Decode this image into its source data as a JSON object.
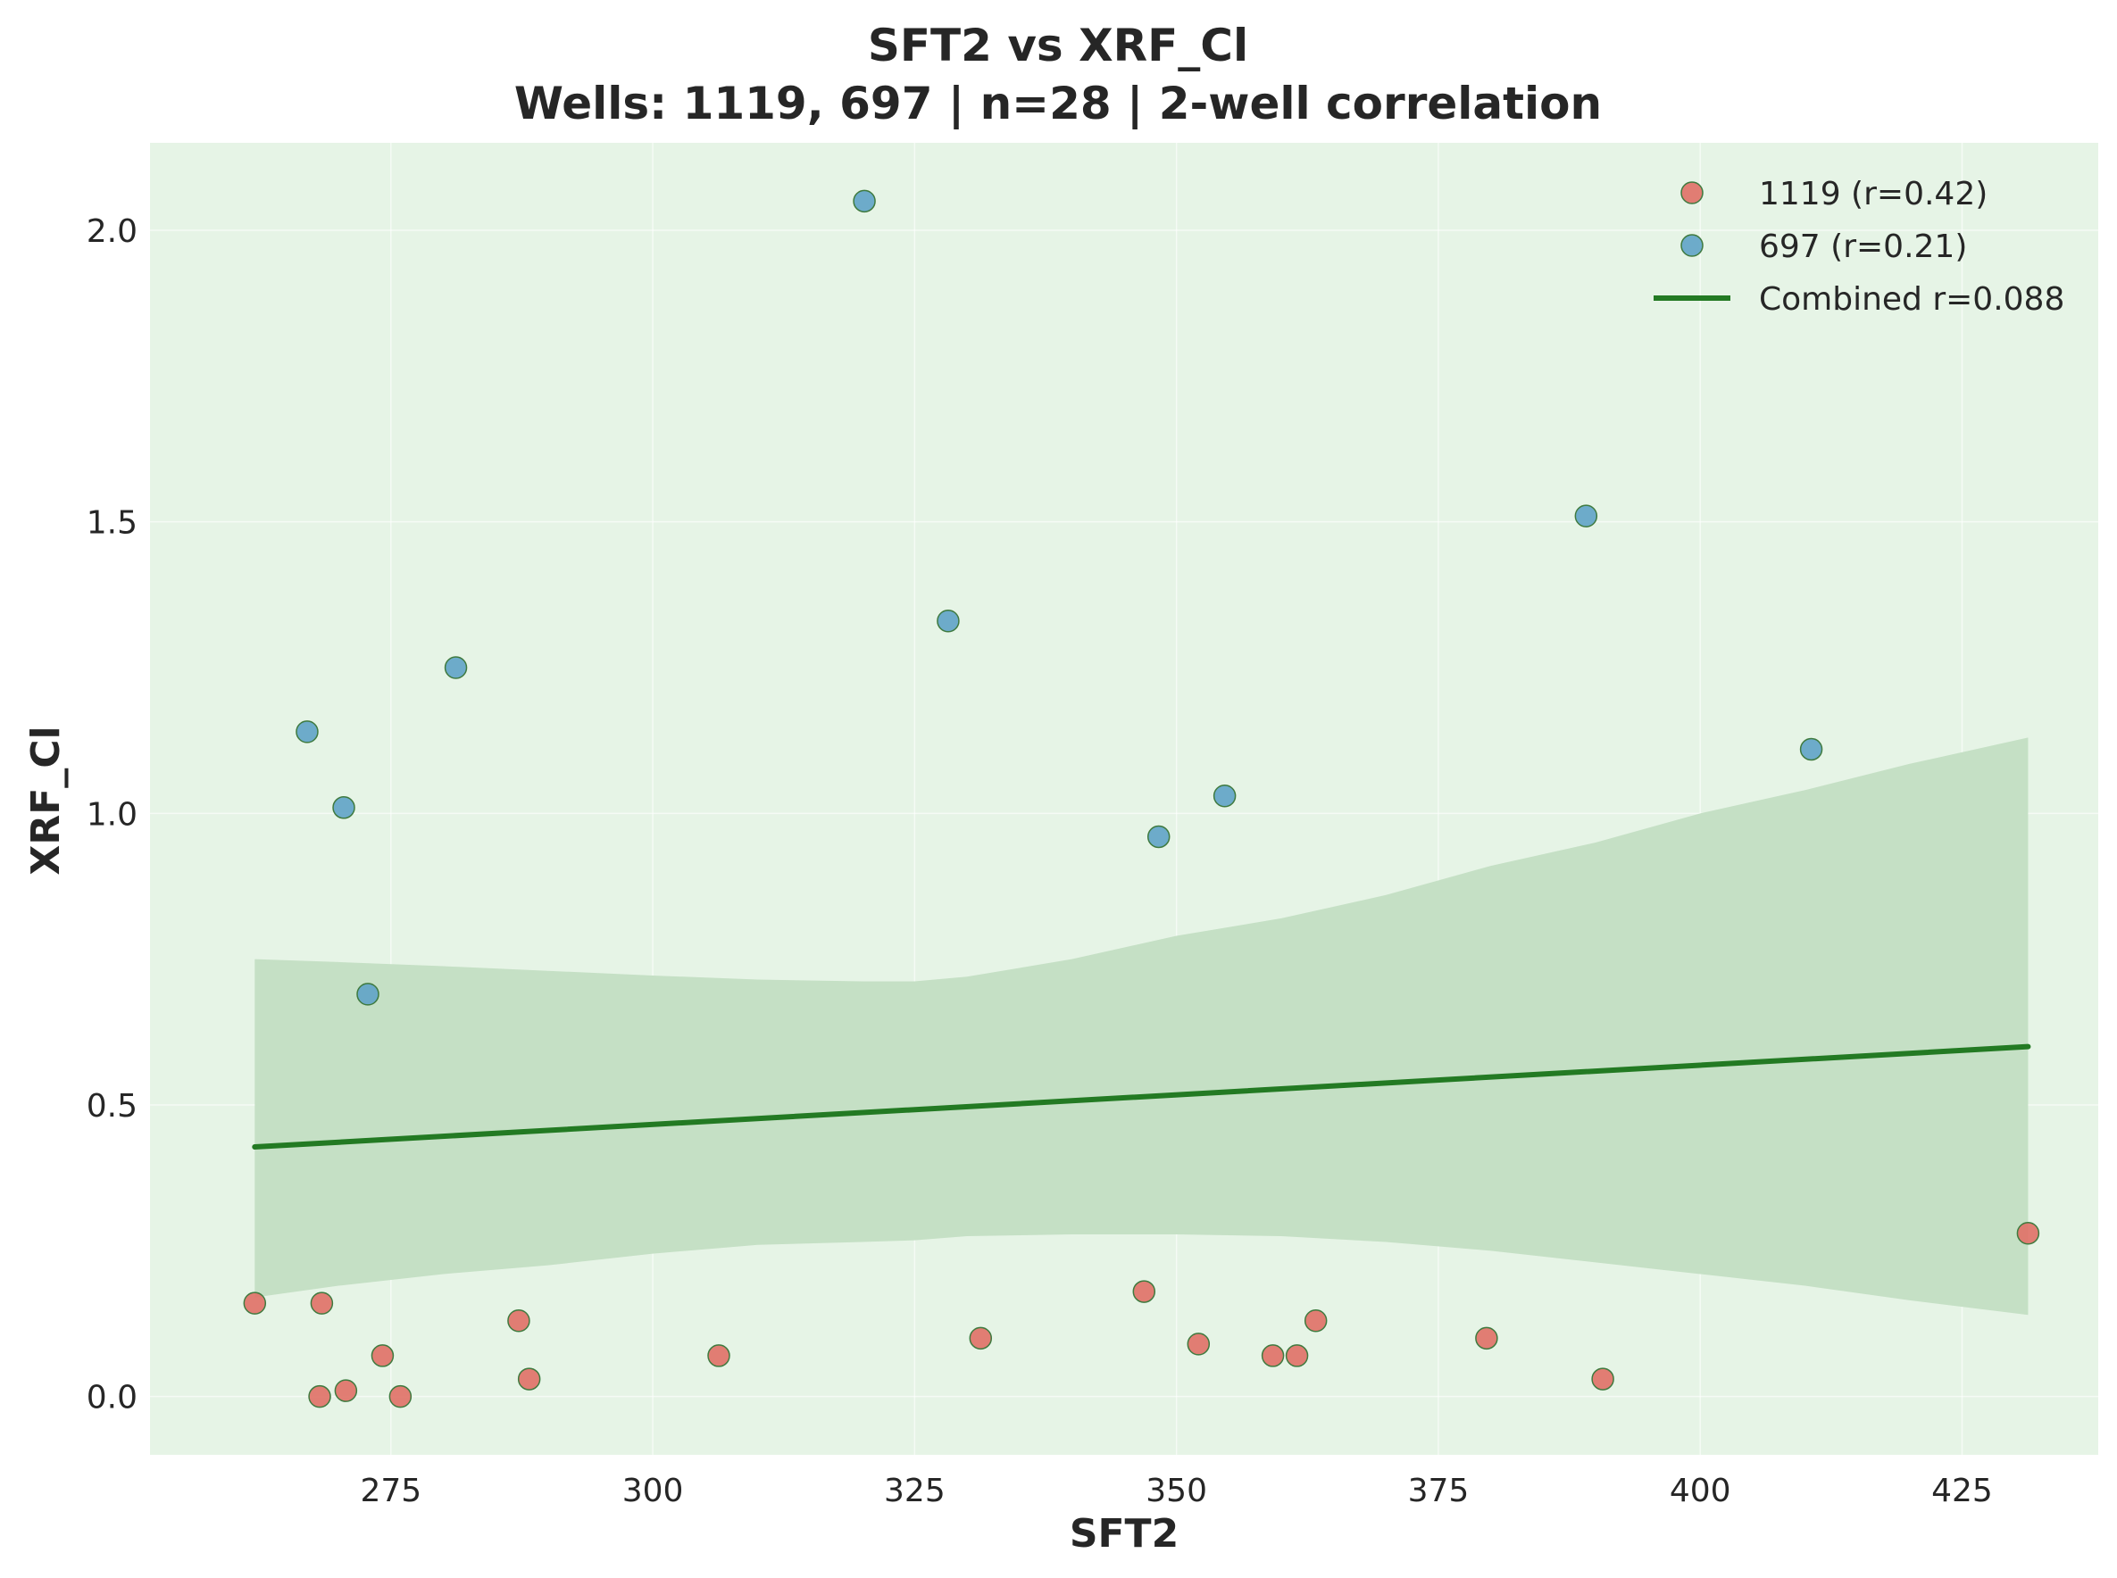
{
  "chart_data": {
    "type": "scatter",
    "title": "SFT2 vs XRF_Cl",
    "subtitle": "Wells: 1119, 697 | n=28 | 2-well correlation",
    "xlabel": "SFT2",
    "ylabel": "XRF_Cl",
    "xlim": [
      252,
      438
    ],
    "ylim": [
      -0.1,
      2.15
    ],
    "x_ticks": [
      275,
      300,
      325,
      350,
      375,
      400,
      425
    ],
    "x_tick_labels": [
      "275",
      "300",
      "325",
      "350",
      "375",
      "400",
      "425"
    ],
    "y_ticks": [
      0.0,
      0.5,
      1.0,
      1.5,
      2.0
    ],
    "y_tick_labels": [
      "0.0",
      "0.5",
      "1.0",
      "1.5",
      "2.0"
    ],
    "grid": true,
    "legend_position": "top-right",
    "background_color": "#e6f4e6",
    "series": [
      {
        "name": "1119 (r=0.42)",
        "color": "#e07066",
        "edge_color": "#3f7a3f",
        "points": [
          [
            262.0,
            0.16
          ],
          [
            268.4,
            0.16
          ],
          [
            268.2,
            0.0
          ],
          [
            270.7,
            0.01
          ],
          [
            274.2,
            0.07
          ],
          [
            275.9,
            0.0
          ],
          [
            287.2,
            0.13
          ],
          [
            288.2,
            0.03
          ],
          [
            306.3,
            0.07
          ],
          [
            331.3,
            0.1
          ],
          [
            346.9,
            0.18
          ],
          [
            352.1,
            0.09
          ],
          [
            359.2,
            0.07
          ],
          [
            361.5,
            0.07
          ],
          [
            363.3,
            0.13
          ],
          [
            379.6,
            0.1
          ],
          [
            390.7,
            0.03
          ],
          [
            431.3,
            0.28
          ]
        ]
      },
      {
        "name": "697 (r=0.21)",
        "color": "#5fa3c6",
        "edge_color": "#3f7a3f",
        "points": [
          [
            267.0,
            1.14
          ],
          [
            270.5,
            1.01
          ],
          [
            272.8,
            0.69
          ],
          [
            281.2,
            1.25
          ],
          [
            320.2,
            2.05
          ],
          [
            328.2,
            1.33
          ],
          [
            348.3,
            0.96
          ],
          [
            354.6,
            1.03
          ],
          [
            389.1,
            1.51
          ],
          [
            410.6,
            1.11
          ]
        ]
      }
    ],
    "fit_line": {
      "name": "Combined r=0.088",
      "color": "#237a23",
      "x": [
        262.0,
        431.3
      ],
      "y": [
        0.428,
        0.6
      ]
    },
    "confidence_band": {
      "color": "#c5e0c5",
      "x": [
        262,
        270,
        280,
        290,
        300,
        310,
        320,
        325,
        330,
        340,
        350,
        360,
        370,
        380,
        390,
        400,
        410,
        420,
        431.3
      ],
      "upper": [
        0.75,
        0.745,
        0.738,
        0.73,
        0.722,
        0.715,
        0.712,
        0.712,
        0.72,
        0.75,
        0.79,
        0.82,
        0.86,
        0.91,
        0.95,
        1.0,
        1.04,
        1.085,
        1.13
      ],
      "lower": [
        0.17,
        0.19,
        0.21,
        0.225,
        0.245,
        0.26,
        0.265,
        0.268,
        0.275,
        0.278,
        0.278,
        0.275,
        0.265,
        0.25,
        0.23,
        0.21,
        0.19,
        0.165,
        0.14
      ]
    }
  }
}
